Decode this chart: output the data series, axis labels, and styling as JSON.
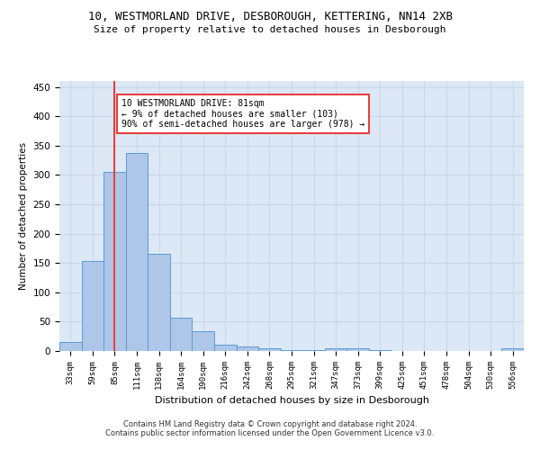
{
  "title": "10, WESTMORLAND DRIVE, DESBOROUGH, KETTERING, NN14 2XB",
  "subtitle": "Size of property relative to detached houses in Desborough",
  "xlabel": "Distribution of detached houses by size in Desborough",
  "ylabel": "Number of detached properties",
  "footnote1": "Contains HM Land Registry data © Crown copyright and database right 2024.",
  "footnote2": "Contains public sector information licensed under the Open Government Licence v3.0.",
  "categories": [
    "33sqm",
    "59sqm",
    "85sqm",
    "111sqm",
    "138sqm",
    "164sqm",
    "190sqm",
    "216sqm",
    "242sqm",
    "268sqm",
    "295sqm",
    "321sqm",
    "347sqm",
    "373sqm",
    "399sqm",
    "425sqm",
    "451sqm",
    "478sqm",
    "504sqm",
    "530sqm",
    "556sqm"
  ],
  "values": [
    15,
    153,
    305,
    338,
    165,
    56,
    33,
    10,
    8,
    5,
    2,
    1,
    5,
    5,
    2,
    0,
    0,
    0,
    0,
    0,
    4
  ],
  "bar_color": "#aec6e8",
  "bar_edge_color": "#5b9bd5",
  "vline_x": 2,
  "vline_color": "#e84040",
  "annotation_text": "10 WESTMORLAND DRIVE: 81sqm\n← 9% of detached houses are smaller (103)\n90% of semi-detached houses are larger (978) →",
  "annotation_box_color": "#ffffff",
  "annotation_box_edge_color": "#e84040",
  "ylim": [
    0,
    460
  ],
  "yticks": [
    0,
    50,
    100,
    150,
    200,
    250,
    300,
    350,
    400,
    450
  ],
  "background_color": "#ffffff",
  "grid_color": "#c8d8ea",
  "plot_bg_color": "#dce8f5"
}
